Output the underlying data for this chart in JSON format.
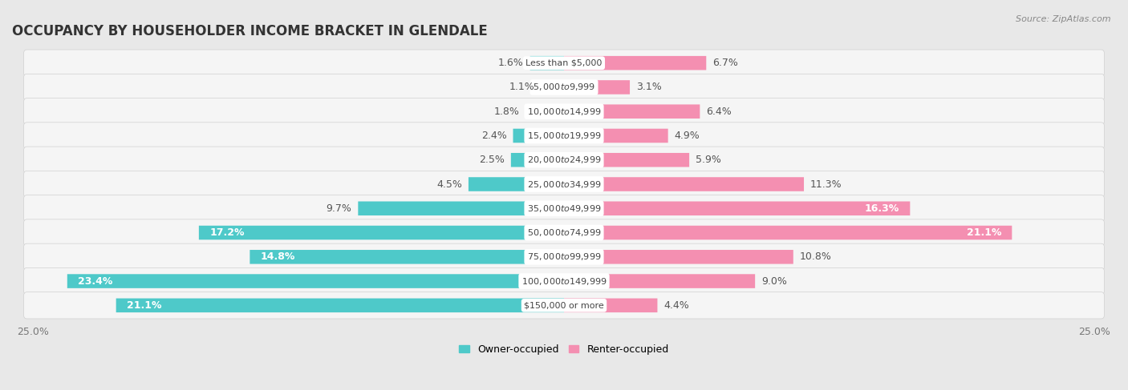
{
  "title": "OCCUPANCY BY HOUSEHOLDER INCOME BRACKET IN GLENDALE",
  "source": "Source: ZipAtlas.com",
  "categories": [
    "Less than $5,000",
    "$5,000 to $9,999",
    "$10,000 to $14,999",
    "$15,000 to $19,999",
    "$20,000 to $24,999",
    "$25,000 to $34,999",
    "$35,000 to $49,999",
    "$50,000 to $74,999",
    "$75,000 to $99,999",
    "$100,000 to $149,999",
    "$150,000 or more"
  ],
  "owner_values": [
    1.6,
    1.1,
    1.8,
    2.4,
    2.5,
    4.5,
    9.7,
    17.2,
    14.8,
    23.4,
    21.1
  ],
  "renter_values": [
    6.7,
    3.1,
    6.4,
    4.9,
    5.9,
    11.3,
    16.3,
    21.1,
    10.8,
    9.0,
    4.4
  ],
  "owner_color": "#4ec9c9",
  "renter_color": "#f48fb1",
  "renter_color_dark": "#f06292",
  "owner_label_color": "#4ec9c9",
  "renter_label_color": "#f48fb1",
  "background_color": "#e8e8e8",
  "row_bg_color": "#f5f5f5",
  "axis_limit": 25.0,
  "bar_height": 0.58,
  "title_fontsize": 12,
  "label_fontsize": 9,
  "category_fontsize": 8,
  "legend_fontsize": 9,
  "source_fontsize": 8
}
